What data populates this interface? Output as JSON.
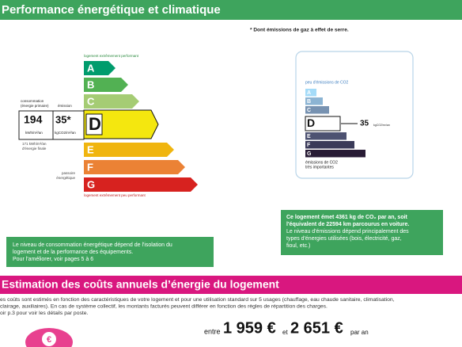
{
  "header": {
    "title": "Performance énergétique et climatique"
  },
  "footnote": "* Dont émissions de gaz à effet de serre.",
  "energy_label": {
    "top_label": "logement extrêmement performant",
    "bottom_label": "logement extrêmement peu performant",
    "classes": [
      "A",
      "B",
      "C",
      "D",
      "E",
      "F",
      "G"
    ],
    "consumption_header": [
      "consommation",
      "(énergie primaire)"
    ],
    "emission_header": "émission",
    "consumption": "194",
    "emission": "35*",
    "consumption_unit": "kWh/m²/an",
    "emission_unit": "kgCO2/m²/an",
    "final_energy": [
      "171 kWh/m²/an",
      "d'énergie finale"
    ],
    "passoire": [
      "passoire",
      "énergétique"
    ]
  },
  "ghg_label": {
    "top_label": "peu d'émissions de CO2",
    "classes": [
      "A",
      "B",
      "C",
      "D",
      "E",
      "F",
      "G"
    ],
    "value": "35",
    "unit": "kgCO2/m²/an",
    "bottom_label": [
      "émissions de CO2",
      "très importantes"
    ]
  },
  "ghg_note": {
    "lines": [
      "Ce logement émet 4361  kg de CO₂ par an, soit",
      "l'équivalent de 22594 km parcourus en voiture.",
      "Le niveau d'émissions dépend principalement des",
      "types d'énergies utilisées (bois, électricité, gaz,",
      "fioul, etc.)"
    ]
  },
  "energy_note": {
    "lines": [
      "Le niveau de consommation énergétique dépend de l'isolation du",
      "logement et de la performance des équipements.",
      "Pour l'améliorer, voir pages 5 à 6"
    ]
  },
  "costs": {
    "title": "Estimation des coûts annuels d’énergie du logement",
    "intro": [
      "es coûts sont estimés en fonction des caractéristiques de votre logement et pour une utilisation standard sur 5 usages (chauffage, eau chaude sanitaire, climatisation,",
      "clairage, auxiliaires). En cas de système collectif, les montants facturés peuvent différer en fonction des règles de répartition des charges.",
      "oir p.3 pour voir les détails par poste."
    ],
    "from_word": "entre",
    "low": "1 959 €",
    "and_word": "et",
    "high": "2 651 €",
    "period": "par an"
  }
}
